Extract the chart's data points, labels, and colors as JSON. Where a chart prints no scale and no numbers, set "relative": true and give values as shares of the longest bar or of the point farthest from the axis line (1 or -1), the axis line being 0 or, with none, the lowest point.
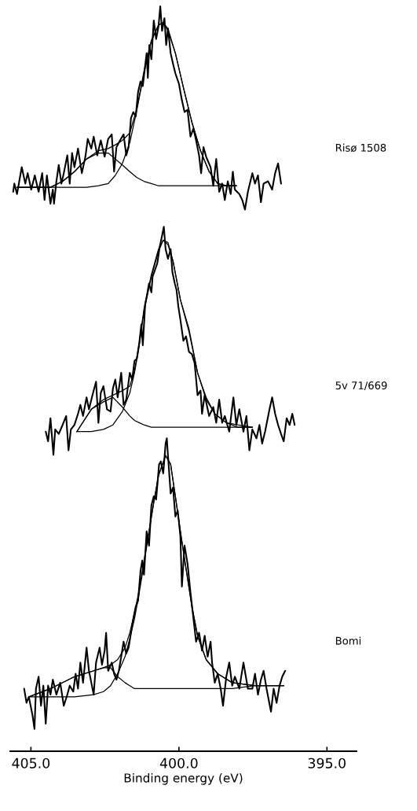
{
  "chart_data": {
    "type": "line",
    "xlabel": "Binding energy (eV)",
    "relative": true,
    "xlim": [
      405.7,
      394.0
    ],
    "xticks": [
      {
        "value": 405,
        "label": "405.0"
      },
      {
        "value": 400,
        "label": "400.0"
      },
      {
        "value": 395,
        "label": "395.0"
      }
    ],
    "series": [
      {
        "name": "Risø 1508",
        "color": "#000000",
        "x": [
          405.6,
          405.56,
          405.47,
          405.31,
          405.19,
          405.11,
          404.99,
          404.87,
          404.74,
          404.62,
          404.54,
          404.46,
          404.34,
          404.26,
          404.22,
          404.14,
          404.06,
          403.97,
          403.89,
          403.77,
          403.69,
          403.61,
          403.53,
          403.41,
          403.28,
          403.16,
          403.08,
          402.96,
          402.88,
          402.76,
          402.64,
          402.51,
          402.39,
          402.27,
          402.19,
          402.11,
          401.99,
          401.87,
          401.78,
          401.7,
          401.62,
          401.54,
          401.46,
          401.38,
          401.3,
          401.22,
          401.14,
          401.09,
          401.05,
          401.0,
          400.93,
          400.85,
          400.77,
          400.69,
          400.63,
          400.57,
          400.49,
          400.43,
          400.37,
          400.28,
          400.2,
          400.12,
          400.0,
          399.9,
          399.81,
          399.71,
          399.61,
          399.51,
          399.42,
          399.32,
          399.25,
          399.17,
          399.08,
          398.93,
          398.84,
          398.74,
          398.64,
          398.54,
          398.45,
          398.35,
          398.25,
          398.18,
          398.11,
          397.96,
          397.86,
          397.77,
          397.67,
          397.52,
          397.43,
          397.33,
          397.23,
          397.14,
          396.99,
          396.85,
          396.75,
          396.65,
          396.55
        ],
        "values": [
          0.751,
          0.762,
          0.748,
          0.784,
          0.762,
          0.776,
          0.754,
          0.773,
          0.751,
          0.776,
          0.74,
          0.773,
          0.735,
          0.754,
          0.735,
          0.765,
          0.787,
          0.762,
          0.776,
          0.8,
          0.762,
          0.803,
          0.784,
          0.809,
          0.776,
          0.798,
          0.822,
          0.809,
          0.825,
          0.8,
          0.82,
          0.798,
          0.822,
          0.828,
          0.778,
          0.811,
          0.82,
          0.828,
          0.8,
          0.811,
          0.85,
          0.858,
          0.852,
          0.885,
          0.899,
          0.893,
          0.921,
          0.937,
          0.904,
          0.948,
          0.929,
          0.981,
          0.956,
          0.973,
          1.0,
          0.967,
          0.984,
          0.948,
          0.97,
          0.937,
          0.923,
          0.91,
          0.896,
          0.874,
          0.858,
          0.861,
          0.825,
          0.836,
          0.82,
          0.8,
          0.776,
          0.811,
          0.798,
          0.784,
          0.759,
          0.795,
          0.751,
          0.762,
          0.74,
          0.765,
          0.748,
          0.778,
          0.754,
          0.748,
          0.74,
          0.727,
          0.751,
          0.776,
          0.762,
          0.773,
          0.737,
          0.762,
          0.765,
          0.754,
          0.776,
          0.789,
          0.762
        ]
      },
      {
        "color": "#000000",
        "x": [
          405.47,
          404.34,
          403.93,
          403.53,
          403.12,
          402.72,
          402.39,
          402.15,
          401.91,
          401.66,
          401.42,
          401.18,
          400.93,
          400.69,
          400.53,
          400.37,
          400.12,
          399.85,
          399.56,
          399.27,
          398.98,
          398.69,
          398.4,
          398.06
        ],
        "values": [
          0.757,
          0.757,
          0.765,
          0.778,
          0.795,
          0.806,
          0.809,
          0.814,
          0.82,
          0.83,
          0.863,
          0.913,
          0.954,
          0.975,
          0.978,
          0.97,
          0.937,
          0.891,
          0.844,
          0.806,
          0.778,
          0.762,
          0.759,
          0.759
        ]
      },
      {
        "color": "#000000",
        "x": [
          405.47,
          404.34,
          403.93,
          403.53,
          403.12,
          402.72,
          402.39,
          402.15,
          401.91,
          401.66,
          401.42,
          401.18,
          400.93,
          400.69,
          400.53,
          400.37,
          400.12,
          399.85,
          399.56,
          399.27,
          398.98,
          398.69,
          398.4,
          398.06
        ],
        "values": [
          0.757,
          0.757,
          0.765,
          0.778,
          0.795,
          0.803,
          0.803,
          0.795,
          0.787,
          0.778,
          0.77,
          0.765,
          0.762,
          0.759,
          0.759,
          0.759,
          0.759,
          0.759,
          0.759,
          0.759,
          0.759,
          0.759,
          0.759,
          0.759
        ]
      },
      {
        "color": "#000000",
        "x": [
          405.47,
          404.34,
          403.93,
          403.53,
          403.12,
          402.72,
          402.39,
          402.15,
          401.91,
          401.66,
          401.42,
          401.18,
          400.93,
          400.69,
          400.53,
          400.37,
          400.12,
          399.85,
          399.56,
          399.27,
          398.98,
          398.69,
          398.4,
          398.06
        ],
        "values": [
          0.757,
          0.757,
          0.757,
          0.757,
          0.757,
          0.759,
          0.762,
          0.773,
          0.789,
          0.817,
          0.861,
          0.91,
          0.954,
          0.975,
          0.978,
          0.967,
          0.937,
          0.891,
          0.844,
          0.806,
          0.778,
          0.762,
          0.759,
          0.759
        ]
      },
      {
        "name": "5v 71/669",
        "color": "#000000",
        "x": [
          404.5,
          404.42,
          404.34,
          404.24,
          404.18,
          404.06,
          403.93,
          403.81,
          403.73,
          403.65,
          403.53,
          403.41,
          403.33,
          403.24,
          403.12,
          403.04,
          402.92,
          402.8,
          402.72,
          402.64,
          402.55,
          402.43,
          402.31,
          402.23,
          402.15,
          402.07,
          401.95,
          401.87,
          401.78,
          401.66,
          401.58,
          401.5,
          401.42,
          401.34,
          401.27,
          401.22,
          401.14,
          401.08,
          401.01,
          400.93,
          400.89,
          400.81,
          400.73,
          400.65,
          400.57,
          400.51,
          400.45,
          400.37,
          400.28,
          400.22,
          400.14,
          400.08,
          400.02,
          399.95,
          399.85,
          399.76,
          399.66,
          399.56,
          399.47,
          399.37,
          399.27,
          399.22,
          399.13,
          398.98,
          398.84,
          398.74,
          398.64,
          398.54,
          398.45,
          398.3,
          398.16,
          398.06,
          397.96,
          397.82,
          397.72,
          397.62,
          397.52,
          397.38,
          397.28,
          397.19,
          397.09,
          396.94,
          396.85,
          396.75,
          396.65,
          396.55,
          396.46,
          396.36,
          396.26,
          396.17,
          396.09
        ],
        "values": [
          0.429,
          0.416,
          0.447,
          0.398,
          0.432,
          0.426,
          0.438,
          0.45,
          0.404,
          0.432,
          0.438,
          0.453,
          0.465,
          0.45,
          0.475,
          0.459,
          0.478,
          0.496,
          0.441,
          0.481,
          0.49,
          0.459,
          0.456,
          0.487,
          0.499,
          0.475,
          0.508,
          0.465,
          0.472,
          0.508,
          0.499,
          0.524,
          0.527,
          0.548,
          0.573,
          0.545,
          0.6,
          0.612,
          0.628,
          0.616,
          0.637,
          0.646,
          0.655,
          0.677,
          0.692,
          0.704,
          0.674,
          0.661,
          0.674,
          0.643,
          0.628,
          0.619,
          0.597,
          0.579,
          0.551,
          0.557,
          0.536,
          0.533,
          0.521,
          0.478,
          0.484,
          0.453,
          0.478,
          0.45,
          0.462,
          0.441,
          0.472,
          0.441,
          0.45,
          0.429,
          0.475,
          0.438,
          0.459,
          0.429,
          0.45,
          0.404,
          0.432,
          0.42,
          0.438,
          0.413,
          0.429,
          0.459,
          0.475,
          0.453,
          0.438,
          0.426,
          0.416,
          0.447,
          0.438,
          0.453,
          0.438
        ]
      },
      {
        "color": "#000000",
        "x": [
          403.45,
          402.96,
          402.55,
          402.23,
          401.91,
          401.66,
          401.5,
          401.34,
          401.18,
          400.93,
          400.69,
          400.53,
          400.37,
          400.2,
          399.95,
          399.66,
          399.37,
          399.08,
          398.79,
          398.4,
          398.01,
          397.52
        ],
        "values": [
          0.429,
          0.459,
          0.472,
          0.478,
          0.484,
          0.49,
          0.511,
          0.548,
          0.594,
          0.64,
          0.674,
          0.686,
          0.683,
          0.658,
          0.606,
          0.567,
          0.508,
          0.475,
          0.453,
          0.441,
          0.438,
          0.435
        ]
      },
      {
        "color": "#000000",
        "x": [
          403.45,
          402.96,
          402.55,
          402.23,
          401.91,
          401.66,
          401.5,
          401.34,
          401.18,
          400.93,
          400.69,
          400.53,
          400.37,
          400.2,
          399.95,
          399.66,
          399.37,
          399.08,
          398.79,
          398.4,
          398.01,
          397.52
        ],
        "values": [
          0.429,
          0.459,
          0.469,
          0.475,
          0.462,
          0.45,
          0.444,
          0.441,
          0.438,
          0.435,
          0.435,
          0.435,
          0.435,
          0.435,
          0.435,
          0.435,
          0.435,
          0.435,
          0.435,
          0.435,
          0.435,
          0.435
        ]
      },
      {
        "color": "#000000",
        "x": [
          403.45,
          402.96,
          402.55,
          402.23,
          401.91,
          401.66,
          401.5,
          401.34,
          401.18,
          400.93,
          400.69,
          400.53,
          400.37,
          400.2,
          399.95,
          399.66,
          399.37,
          399.08,
          398.79,
          398.4,
          398.01,
          397.52
        ],
        "values": [
          0.429,
          0.429,
          0.432,
          0.438,
          0.456,
          0.481,
          0.508,
          0.545,
          0.591,
          0.637,
          0.671,
          0.686,
          0.68,
          0.658,
          0.606,
          0.563,
          0.508,
          0.472,
          0.453,
          0.441,
          0.435,
          0.435
        ]
      },
      {
        "name": "Bomi",
        "color": "#000000",
        "x": [
          405.23,
          405.15,
          405.07,
          404.95,
          404.88,
          404.83,
          404.74,
          404.66,
          404.58,
          404.5,
          404.42,
          404.34,
          404.26,
          404.14,
          404.01,
          403.89,
          403.77,
          403.69,
          403.57,
          403.49,
          403.41,
          403.33,
          403.24,
          403.12,
          403.04,
          402.96,
          402.88,
          402.8,
          402.68,
          402.6,
          402.51,
          402.46,
          402.39,
          402.27,
          402.19,
          402.11,
          402.03,
          401.95,
          401.87,
          401.78,
          401.7,
          401.62,
          401.54,
          401.46,
          401.38,
          401.3,
          401.24,
          401.18,
          401.09,
          401.01,
          400.93,
          400.85,
          400.77,
          400.67,
          400.61,
          400.53,
          400.45,
          400.41,
          400.37,
          400.28,
          400.2,
          400.12,
          400.04,
          399.95,
          399.9,
          399.81,
          399.71,
          399.61,
          399.51,
          399.42,
          399.32,
          399.22,
          399.13,
          399.03,
          398.93,
          398.88,
          398.79,
          398.69,
          398.59,
          398.51,
          398.4,
          398.3,
          398.2,
          398.11,
          397.96,
          397.82,
          397.67,
          397.52,
          397.43,
          397.33,
          397.23,
          397.14,
          397.04,
          396.89,
          396.8,
          396.7,
          396.6,
          396.51,
          396.41
        ],
        "values": [
          0.084,
          0.065,
          0.073,
          0.049,
          0.03,
          0.084,
          0.1,
          0.061,
          0.088,
          0.037,
          0.088,
          0.076,
          0.096,
          0.076,
          0.092,
          0.061,
          0.076,
          0.088,
          0.08,
          0.104,
          0.084,
          0.119,
          0.092,
          0.139,
          0.108,
          0.092,
          0.076,
          0.119,
          0.139,
          0.116,
          0.135,
          0.159,
          0.108,
          0.119,
          0.104,
          0.096,
          0.108,
          0.127,
          0.147,
          0.131,
          0.139,
          0.159,
          0.178,
          0.194,
          0.202,
          0.241,
          0.256,
          0.237,
          0.295,
          0.276,
          0.33,
          0.342,
          0.338,
          0.385,
          0.389,
          0.373,
          0.413,
          0.42,
          0.397,
          0.346,
          0.354,
          0.315,
          0.323,
          0.288,
          0.221,
          0.276,
          0.252,
          0.213,
          0.178,
          0.147,
          0.159,
          0.135,
          0.155,
          0.127,
          0.147,
          0.119,
          0.092,
          0.104,
          0.084,
          0.061,
          0.1,
          0.119,
          0.088,
          0.1,
          0.084,
          0.119,
          0.084,
          0.084,
          0.104,
          0.076,
          0.096,
          0.108,
          0.084,
          0.053,
          0.084,
          0.065,
          0.088,
          0.1,
          0.108
        ]
      },
      {
        "color": "#000000",
        "x": [
          405.07,
          404.34,
          403.53,
          402.88,
          402.55,
          402.31,
          402.07,
          401.82,
          401.66,
          401.5,
          401.34,
          401.18,
          401.01,
          400.85,
          400.69,
          400.45,
          400.28,
          400.12,
          399.95,
          399.76,
          399.56,
          399.37,
          399.08,
          398.69,
          398.2,
          397.43,
          396.46
        ],
        "values": [
          0.073,
          0.084,
          0.1,
          0.108,
          0.112,
          0.116,
          0.123,
          0.139,
          0.159,
          0.186,
          0.217,
          0.256,
          0.295,
          0.334,
          0.37,
          0.397,
          0.385,
          0.342,
          0.295,
          0.245,
          0.194,
          0.155,
          0.123,
          0.104,
          0.092,
          0.088,
          0.088
        ]
      },
      {
        "color": "#000000",
        "x": [
          405.07,
          404.34,
          403.53,
          402.88,
          402.55,
          402.31,
          402.07,
          401.82,
          401.66,
          401.5,
          401.34,
          401.18,
          401.01,
          400.85,
          400.69,
          400.45,
          400.28,
          400.12,
          399.95,
          399.76,
          399.56,
          399.37,
          399.08,
          398.69,
          398.2,
          397.43,
          396.46
        ],
        "values": [
          0.073,
          0.084,
          0.1,
          0.108,
          0.112,
          0.112,
          0.1,
          0.092,
          0.088,
          0.084,
          0.084,
          0.084,
          0.084,
          0.084,
          0.084,
          0.084,
          0.084,
          0.084,
          0.084,
          0.084,
          0.084,
          0.084,
          0.084,
          0.084,
          0.084,
          0.088,
          0.088
        ]
      },
      {
        "color": "#000000",
        "x": [
          405.07,
          404.34,
          403.53,
          402.88,
          402.55,
          402.31,
          402.07,
          401.82,
          401.66,
          401.5,
          401.34,
          401.18,
          401.01,
          400.85,
          400.69,
          400.45,
          400.28,
          400.12,
          399.95,
          399.76,
          399.56,
          399.37,
          399.08,
          398.69,
          398.2,
          397.43,
          396.46
        ],
        "values": [
          0.073,
          0.073,
          0.073,
          0.076,
          0.08,
          0.088,
          0.104,
          0.127,
          0.151,
          0.178,
          0.213,
          0.252,
          0.295,
          0.334,
          0.37,
          0.397,
          0.385,
          0.342,
          0.295,
          0.245,
          0.194,
          0.155,
          0.123,
          0.104,
          0.092,
          0.088,
          0.088
        ]
      }
    ]
  }
}
